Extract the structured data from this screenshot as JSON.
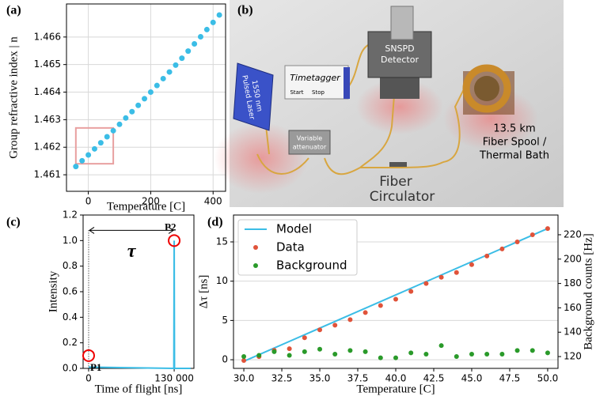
{
  "chart_data": [
    {
      "type": "scatter",
      "label": "(a)",
      "xlabel": "Temperature [C]",
      "ylabel": "Group refractive index | n",
      "x": [
        -40,
        -20,
        0,
        20,
        40,
        60,
        80,
        100,
        120,
        140,
        160,
        180,
        200,
        220,
        240,
        260,
        280,
        300,
        320,
        340,
        360,
        380,
        400,
        420
      ],
      "values": [
        1.4613,
        1.46151,
        1.46172,
        1.46194,
        1.46216,
        1.46238,
        1.4626,
        1.46283,
        1.46306,
        1.46329,
        1.46352,
        1.46376,
        1.464,
        1.46424,
        1.46449,
        1.46473,
        1.46498,
        1.46523,
        1.46549,
        1.46575,
        1.46601,
        1.46627,
        1.46653,
        1.4668
      ],
      "color": "#3bbde6",
      "xlim": [
        -70,
        440
      ],
      "ylim": [
        1.4604,
        1.4672
      ],
      "xticks": [
        0,
        200,
        400
      ],
      "yticks": [
        1.461,
        1.462,
        1.463,
        1.464,
        1.465,
        1.466
      ],
      "grid": true,
      "highlight": {
        "x": [
          -40,
          80
        ],
        "y": [
          1.4614,
          1.4627
        ],
        "color": "#e8a0a0"
      }
    },
    {
      "type": "line",
      "label": "(c)",
      "xlabel": "Time of flight [ns]",
      "ylabel": "Intensity",
      "x": [
        0,
        129500,
        130000,
        130500,
        155000
      ],
      "values": [
        0.01,
        0,
        1.0,
        0,
        0
      ],
      "color": "#3bbde6",
      "xlim": [
        -8400,
        160000
      ],
      "ylim": [
        0,
        1.2
      ],
      "xticks": [
        0,
        {
          "value": 130000,
          "label": "130 000"
        }
      ],
      "yticks": [
        {
          "value": 0,
          "label": "0.0"
        },
        0.2,
        0.4,
        0.6,
        0.8,
        {
          "value": 1,
          "label": "1.0"
        },
        1.2
      ],
      "grid": false,
      "annotations": [
        {
          "text": "P1",
          "x": 0,
          "y": 0.1
        },
        {
          "text": "P2",
          "x": 130000,
          "y": 1.0
        }
      ],
      "interval": {
        "text": "τ",
        "x": [
          0,
          130000
        ],
        "y": 1.08
      }
    },
    {
      "type": "combo",
      "label": "(d)",
      "xlabel": "Temperature [C]",
      "ylabel": "Δτ [ns]",
      "y2label": "Background counts [Hz]",
      "x": [
        30,
        31,
        32,
        33,
        34,
        35,
        36,
        37,
        38,
        39,
        40,
        41,
        42,
        43,
        44,
        45,
        46,
        47,
        48,
        49,
        50
      ],
      "series": [
        {
          "name": "Model",
          "color": "#3bbde6",
          "style": "line",
          "x": [
            30,
            50
          ],
          "values": [
            -0.2,
            16.7
          ]
        },
        {
          "name": "Data",
          "color": "#e0533a",
          "style": "markers",
          "values": [
            -0.1,
            0.4,
            1.2,
            1.4,
            2.8,
            3.8,
            4.4,
            5.1,
            6.0,
            6.9,
            7.7,
            8.7,
            9.7,
            10.5,
            11.1,
            12.1,
            13.2,
            14.1,
            15.0,
            15.9,
            16.7
          ]
        },
        {
          "name": "Background",
          "color": "#2a9a2a",
          "style": "markers",
          "axis": "y2",
          "values": [
            120,
            121,
            124,
            121,
            124,
            126,
            122,
            125,
            124,
            119,
            119,
            123,
            122,
            129,
            120,
            122,
            122,
            122,
            125,
            125,
            123
          ]
        }
      ],
      "xlim": [
        29.32,
        50.68
      ],
      "ylim": [
        -1.1,
        18.42
      ],
      "y2lim": [
        110.3,
        236.2
      ],
      "xticks": [
        {
          "value": 30,
          "label": "30.0"
        },
        32.5,
        {
          "value": 35,
          "label": "35.0"
        },
        37.5,
        {
          "value": 40,
          "label": "40.0"
        },
        42.5,
        {
          "value": 45,
          "label": "45.0"
        },
        47.5,
        {
          "value": 50,
          "label": "50.0"
        }
      ],
      "yticks": [
        0,
        5,
        10,
        15
      ],
      "y2ticks": [
        120,
        140,
        160,
        180,
        200,
        220
      ],
      "grid": "y",
      "legend": "upper left"
    }
  ],
  "diagram": {
    "label": "(b)",
    "laser": [
      "1550 nm",
      "Pulsed Laser"
    ],
    "timetagger": "Timetagger",
    "start": "Start",
    "stop": "Stop",
    "detector": [
      "SNSPD",
      "Detector"
    ],
    "attenuator": [
      "Variable",
      "attenuator"
    ],
    "spool": [
      "13.5 km",
      "Fiber Spool /",
      "Thermal Bath"
    ],
    "circulator": [
      "Fiber",
      "Circulator"
    ]
  }
}
